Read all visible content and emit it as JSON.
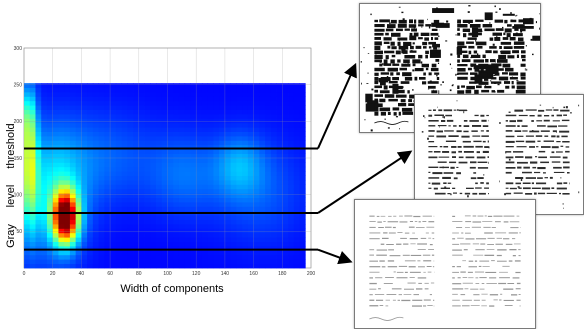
{
  "chart_data": {
    "type": "heatmap",
    "title": "",
    "xlabel": "Width of components",
    "ylabel_words": [
      "Gray",
      "level",
      "threshold"
    ],
    "xlim": [
      0,
      200
    ],
    "ylim": [
      0,
      300
    ],
    "data_ylim": [
      0,
      250
    ],
    "x_ticks": [
      "0",
      "20",
      "40",
      "60",
      "80",
      "100",
      "120",
      "140",
      "160",
      "180",
      "200"
    ],
    "y_ticks": [
      "300",
      "250",
      "200",
      "150",
      "100",
      "50"
    ],
    "colormap": [
      "#00007f",
      "#0000ff",
      "#0080ff",
      "#00ffff",
      "#80ff80",
      "#ffff00",
      "#ff8000",
      "#ff0000",
      "#7f0000"
    ],
    "background_level": 0.13,
    "hotspots": [
      {
        "x": 29,
        "y": 70,
        "sx": 6,
        "sy": 24,
        "amp": 0.92
      },
      {
        "x": 4,
        "y": 145,
        "sx": 4,
        "sy": 60,
        "amp": 0.38
      },
      {
        "x": 3,
        "y": 205,
        "sx": 3,
        "sy": 25,
        "amp": 0.14
      },
      {
        "x": 20,
        "y": 100,
        "sx": 16,
        "sy": 60,
        "amp": 0.22
      },
      {
        "x": 55,
        "y": 150,
        "sx": 26,
        "sy": 45,
        "amp": 0.09
      },
      {
        "x": 112,
        "y": 128,
        "sx": 18,
        "sy": 40,
        "amp": 0.1
      },
      {
        "x": 150,
        "y": 140,
        "sx": 12,
        "sy": 30,
        "amp": 0.13
      },
      {
        "x": 165,
        "y": 105,
        "sx": 22,
        "sy": 50,
        "amp": 0.08
      }
    ],
    "threshold_lines": [
      {
        "y": 163,
        "target": "doc1"
      },
      {
        "y": 75,
        "target": "doc2"
      },
      {
        "y": 25,
        "target": "doc3"
      }
    ],
    "grid": true,
    "legend": "none"
  },
  "documents": [
    {
      "id": "doc1",
      "threshold": 163,
      "style": "heavy"
    },
    {
      "id": "doc2",
      "threshold": 75,
      "style": "medium"
    },
    {
      "id": "doc3",
      "threshold": 25,
      "style": "faint"
    }
  ]
}
